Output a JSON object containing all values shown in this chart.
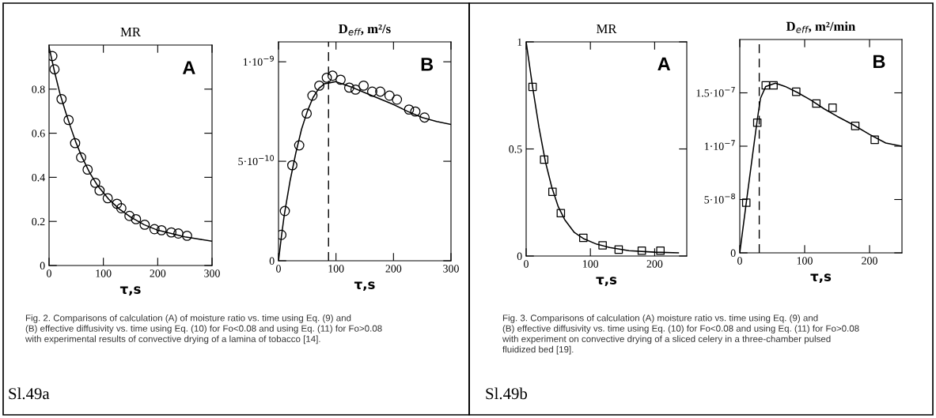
{
  "chart_data": [
    {
      "type": "scatter",
      "title": "MR",
      "xlabel": "τ,s",
      "xlim": [
        0,
        300
      ],
      "xticks": [
        0,
        100,
        200,
        300
      ],
      "ylim": [
        0,
        1.0
      ],
      "yticks": [
        0,
        0.2,
        0.4,
        0.6,
        0.8
      ],
      "grid": false,
      "legend": false,
      "series": [
        {
          "marker": "circle",
          "color": "#000000",
          "x": [
            6,
            10,
            23,
            36,
            48,
            59,
            71,
            85,
            93,
            108,
            125,
            133,
            148,
            160,
            176,
            194,
            207,
            225,
            238,
            254
          ],
          "values": [
            0.95,
            0.89,
            0.755,
            0.66,
            0.555,
            0.49,
            0.435,
            0.375,
            0.34,
            0.305,
            0.28,
            0.26,
            0.225,
            0.21,
            0.185,
            0.165,
            0.16,
            0.15,
            0.145,
            0.135
          ]
        },
        {
          "type": "line",
          "color": "#000000",
          "x": [
            0,
            10,
            20,
            30,
            40,
            50,
            60,
            75,
            90,
            110,
            130,
            150,
            175,
            200,
            225,
            250,
            275,
            300
          ],
          "values": [
            0.99,
            0.88,
            0.78,
            0.7,
            0.625,
            0.555,
            0.495,
            0.42,
            0.36,
            0.3,
            0.255,
            0.22,
            0.185,
            0.16,
            0.145,
            0.13,
            0.12,
            0.11
          ]
        }
      ],
      "annotations": [
        "A",
        "Fig. 2. Comparisons of calculation (A) of moisture ratio vs. time using Eq. (9) and\n(B) effective diffusivity vs. time using Eq. (10) for Fo<0.08 and using Eq. (11) for Fo>0.08\nwith experimental results of convective drying of a lamina of tobacco [14].",
        "Sl.49a"
      ]
    },
    {
      "type": "scatter",
      "title": "D$_{eff}$, m²/s",
      "xlabel": "τ,s",
      "xlim": [
        0,
        300
      ],
      "xticks": [
        0,
        100,
        200,
        300
      ],
      "ylim": [
        0,
        1.1e-09
      ],
      "yticks": [
        0,
        {
          "value": 5e-10,
          "label": "5·10$^{−10}$"
        },
        {
          "value": 1e-09,
          "label": "1·10$^{−9}$"
        }
      ],
      "grid": false,
      "legend": false,
      "series": [
        {
          "marker": "circle",
          "color": "#000000",
          "x": [
            5,
            11,
            24,
            36,
            49,
            59,
            71,
            84,
            94,
            108,
            123,
            134,
            148,
            163,
            177,
            193,
            206,
            227,
            238,
            254
          ],
          "values": [
            1.3e-10,
            2.5e-10,
            4.8e-10,
            5.8e-10,
            7.4e-10,
            8.3e-10,
            8.8e-10,
            9.2e-10,
            9.3e-10,
            9.1e-10,
            8.7e-10,
            8.6e-10,
            8.8e-10,
            8.5e-10,
            8.5e-10,
            8.3e-10,
            8.1e-10,
            7.6e-10,
            7.5e-10,
            7.2e-10
          ]
        },
        {
          "type": "line",
          "color": "#000000",
          "x": [
            0,
            5,
            10,
            20,
            30,
            40,
            50,
            60,
            70,
            80,
            90,
            100,
            125,
            150,
            175,
            200,
            225,
            250,
            275,
            300
          ],
          "values": [
            0,
            1.2e-10,
            2.3e-10,
            4e-10,
            5.4e-10,
            6.6e-10,
            7.5e-10,
            8.2e-10,
            8.65e-10,
            8.9e-10,
            8.95e-10,
            9e-10,
            8.75e-10,
            8.45e-10,
            8.15e-10,
            7.85e-10,
            7.5e-10,
            7.2e-10,
            7e-10,
            6.85e-10
          ]
        }
      ],
      "ref_lines": [
        {
          "axis": "x",
          "value": 87,
          "color": "#000000",
          "line_style": "dashed"
        }
      ],
      "annotations": [
        "B"
      ]
    },
    {
      "type": "scatter",
      "title": "MR",
      "xlabel": "τ,s",
      "xlim": [
        0,
        250
      ],
      "xticks": [
        0,
        100,
        200
      ],
      "ylim": [
        0,
        1
      ],
      "yticks": [
        0,
        0.5,
        1
      ],
      "grid": false,
      "legend": false,
      "series": [
        {
          "marker": "square",
          "color": "#000000",
          "x": [
            10,
            28,
            41,
            54,
            89,
            119,
            144,
            180,
            209
          ],
          "values": [
            0.79,
            0.45,
            0.3,
            0.2,
            0.085,
            0.05,
            0.03,
            0.025,
            0.025
          ]
        },
        {
          "type": "line",
          "color": "#000000",
          "x": [
            0,
            10,
            20,
            30,
            40,
            50,
            60,
            75,
            90,
            110,
            130,
            160,
            200,
            237
          ],
          "values": [
            1.0,
            0.79,
            0.6,
            0.44,
            0.32,
            0.23,
            0.17,
            0.11,
            0.08,
            0.055,
            0.04,
            0.025,
            0.018,
            0.015
          ]
        }
      ],
      "annotations": [
        "A",
        "Fig. 3. Comparisons of calculation (A) moisture ratio vs. time using Eq. (9) and\n(B) effective diffusivity vs. time using Eq. (10) for Fo<0.08 and using Eq. (11) for Fo>0.08\nwith experiment on convective drying of a sliced celery in a three-chamber pulsed\nfluidized bed [19].",
        "Sl.49b"
      ]
    },
    {
      "type": "scatter",
      "title": "D$_{eff}$, m²/min",
      "xlabel": "τ,s",
      "xlim": [
        0,
        250
      ],
      "xticks": [
        0,
        100,
        200
      ],
      "ylim": [
        0,
        2e-07
      ],
      "yticks": [
        0,
        {
          "value": 5e-08,
          "label": "5·10$^{−8}$"
        },
        {
          "value": 1e-07,
          "label": "1·10$^{−7}$"
        },
        {
          "value": 1.5e-07,
          "label": "1.5·10$^{−7}$"
        }
      ],
      "grid": false,
      "legend": false,
      "series": [
        {
          "marker": "square",
          "color": "#000000",
          "x": [
            10,
            27,
            40,
            52,
            87,
            118,
            143,
            178,
            208
          ],
          "values": [
            4.7e-08,
            1.22e-07,
            1.57e-07,
            1.57e-07,
            1.51e-07,
            1.4e-07,
            1.36e-07,
            1.19e-07,
            1.06e-07
          ]
        },
        {
          "type": "line",
          "color": "#000000",
          "x": [
            0,
            10,
            20,
            27,
            32,
            40,
            55,
            70,
            90,
            110,
            130,
            150,
            175,
            200,
            225,
            250
          ],
          "values": [
            0,
            4.7e-08,
            9.3e-08,
            1.25e-07,
            1.45e-07,
            1.56e-07,
            1.59e-07,
            1.56e-07,
            1.5e-07,
            1.43e-07,
            1.35e-07,
            1.28e-07,
            1.2e-07,
            1.11e-07,
            1.03e-07,
            1e-07
          ]
        }
      ],
      "ref_lines": [
        {
          "axis": "x",
          "value": 30,
          "color": "#000000",
          "line_style": "dashed"
        }
      ],
      "annotations": [
        "B"
      ]
    }
  ]
}
